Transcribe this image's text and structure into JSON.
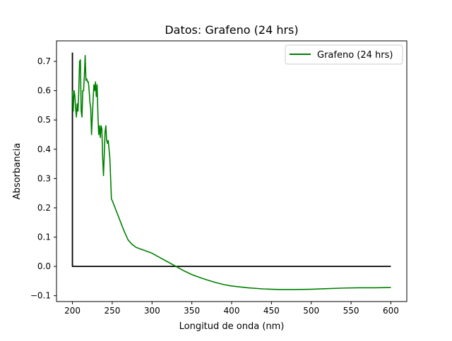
{
  "chart_data": {
    "type": "line",
    "title": "Datos: Grafeno (24 hrs)",
    "xlabel": "Longitud de onda (nm)",
    "ylabel": "Absorbancia",
    "xlim": [
      180,
      620
    ],
    "ylim": [
      -0.12,
      0.77
    ],
    "xticks": [
      200,
      250,
      300,
      350,
      400,
      450,
      500,
      550,
      600
    ],
    "yticks": [
      -0.1,
      0.0,
      0.1,
      0.2,
      0.3,
      0.4,
      0.5,
      0.6,
      0.7
    ],
    "legend_position": "top-right",
    "grid": false,
    "series": [
      {
        "name": "Grafeno (24 hrs)",
        "color": "#008000",
        "points": [
          [
            200,
            0.6
          ],
          [
            201,
            0.53
          ],
          [
            202,
            0.6
          ],
          [
            203,
            0.585
          ],
          [
            204,
            0.54
          ],
          [
            205,
            0.51
          ],
          [
            206,
            0.555
          ],
          [
            207,
            0.53
          ],
          [
            208,
            0.6
          ],
          [
            209,
            0.7
          ],
          [
            210,
            0.705
          ],
          [
            211,
            0.53
          ],
          [
            212,
            0.51
          ],
          [
            213,
            0.6
          ],
          [
            214,
            0.6
          ],
          [
            215,
            0.65
          ],
          [
            216,
            0.72
          ],
          [
            217,
            0.635
          ],
          [
            218,
            0.64
          ],
          [
            219,
            0.63
          ],
          [
            220,
            0.63
          ],
          [
            221,
            0.6
          ],
          [
            222,
            0.56
          ],
          [
            223,
            0.54
          ],
          [
            224,
            0.45
          ],
          [
            225,
            0.51
          ],
          [
            226,
            0.57
          ],
          [
            227,
            0.62
          ],
          [
            228,
            0.6
          ],
          [
            229,
            0.63
          ],
          [
            230,
            0.58
          ],
          [
            231,
            0.62
          ],
          [
            232,
            0.52
          ],
          [
            233,
            0.45
          ],
          [
            234,
            0.48
          ],
          [
            235,
            0.44
          ],
          [
            236,
            0.48
          ],
          [
            237,
            0.47
          ],
          [
            238,
            0.37
          ],
          [
            239,
            0.31
          ],
          [
            240,
            0.38
          ],
          [
            241,
            0.46
          ],
          [
            242,
            0.48
          ],
          [
            243,
            0.43
          ],
          [
            244,
            0.42
          ],
          [
            245,
            0.43
          ],
          [
            246,
            0.4
          ],
          [
            247,
            0.37
          ],
          [
            248,
            0.3
          ],
          [
            249,
            0.23
          ],
          [
            250,
            0.225
          ],
          [
            255,
            0.19
          ],
          [
            260,
            0.155
          ],
          [
            265,
            0.12
          ],
          [
            270,
            0.09
          ],
          [
            275,
            0.075
          ],
          [
            280,
            0.065
          ],
          [
            290,
            0.055
          ],
          [
            300,
            0.045
          ],
          [
            310,
            0.03
          ],
          [
            320,
            0.015
          ],
          [
            330,
            0.0
          ],
          [
            340,
            -0.015
          ],
          [
            350,
            -0.028
          ],
          [
            360,
            -0.038
          ],
          [
            370,
            -0.047
          ],
          [
            380,
            -0.055
          ],
          [
            390,
            -0.062
          ],
          [
            400,
            -0.067
          ],
          [
            420,
            -0.073
          ],
          [
            440,
            -0.077
          ],
          [
            460,
            -0.079
          ],
          [
            480,
            -0.079
          ],
          [
            500,
            -0.078
          ],
          [
            520,
            -0.076
          ],
          [
            540,
            -0.074
          ],
          [
            560,
            -0.073
          ],
          [
            580,
            -0.073
          ],
          [
            600,
            -0.072
          ]
        ]
      },
      {
        "name": "",
        "color": "#000000",
        "points": [
          [
            200,
            0.73
          ],
          [
            200,
            0.0
          ],
          [
            600,
            0.0
          ]
        ]
      }
    ]
  }
}
